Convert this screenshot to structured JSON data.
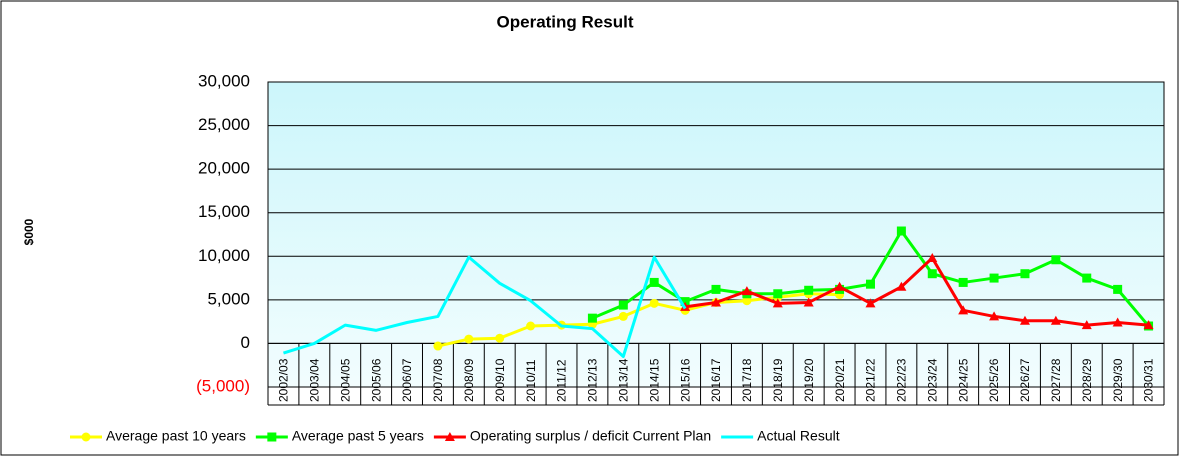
{
  "chart_data": {
    "type": "line",
    "title": "Operating Result",
    "ylabel": "$000",
    "categories": [
      "2002/03",
      "2003/04",
      "2004/05",
      "2005/06",
      "2006/07",
      "2007/08",
      "2008/09",
      "2009/10",
      "2010/11",
      "2011/12",
      "2012/13",
      "2013/14",
      "2014/15",
      "2015/16",
      "2016/17",
      "2017/18",
      "2018/19",
      "2019/20",
      "2020/21",
      "2021/22",
      "2022/23",
      "2023/24",
      "2024/25",
      "2025/26",
      "2026/27",
      "2027/28",
      "2028/29",
      "2029/30",
      "2030/31"
    ],
    "series": [
      {
        "name": "Average past 10 years",
        "color": "#ffff00",
        "marker": "circle",
        "values": [
          null,
          null,
          null,
          null,
          null,
          -300,
          500,
          600,
          2000,
          2100,
          2200,
          3100,
          4600,
          3800,
          4700,
          4900,
          5300,
          5700,
          5600,
          null,
          null,
          null,
          null,
          null,
          null,
          null,
          null,
          null,
          null
        ]
      },
      {
        "name": "Average past 5 years",
        "color": "#00ff00",
        "marker": "square",
        "values": [
          null,
          null,
          null,
          null,
          null,
          null,
          null,
          null,
          null,
          null,
          2900,
          4400,
          7000,
          4800,
          6200,
          5700,
          5700,
          6100,
          6200,
          6800,
          12900,
          8000,
          7000,
          7500,
          8000,
          9600,
          7500,
          6200,
          2000
        ]
      },
      {
        "name": "Operating surplus / deficit Current Plan",
        "color": "#ff0000",
        "marker": "triangle",
        "values": [
          null,
          null,
          null,
          null,
          null,
          null,
          null,
          null,
          null,
          null,
          null,
          null,
          null,
          4200,
          4700,
          6000,
          4600,
          4700,
          6500,
          4600,
          6500,
          9800,
          3800,
          3100,
          2600,
          2600,
          2100,
          2400,
          2100
        ]
      },
      {
        "name": "Actual Result",
        "color": "#00ffff",
        "values": [
          -1100,
          0,
          2100,
          1500,
          2400,
          3100,
          9900,
          6900,
          4900,
          2000,
          1700,
          -1500,
          9900,
          4000,
          null,
          null,
          null,
          null,
          null,
          null,
          null,
          null,
          null,
          null,
          null,
          null,
          null,
          null,
          null
        ]
      }
    ],
    "ylim": [
      -5000,
      30000
    ],
    "yticks": [
      {
        "value": -5000,
        "label": "(5,000)"
      },
      0,
      {
        "value": 5000,
        "label": "5,000"
      },
      {
        "value": 10000,
        "label": "10,000"
      },
      {
        "value": 15000,
        "label": "15,000"
      },
      {
        "value": 20000,
        "label": "20,000"
      },
      {
        "value": 25000,
        "label": "25,000"
      },
      {
        "value": 30000,
        "label": "30,000"
      }
    ],
    "negative_tick_color": "#ff0000",
    "grid": true,
    "legend": "bottom"
  }
}
